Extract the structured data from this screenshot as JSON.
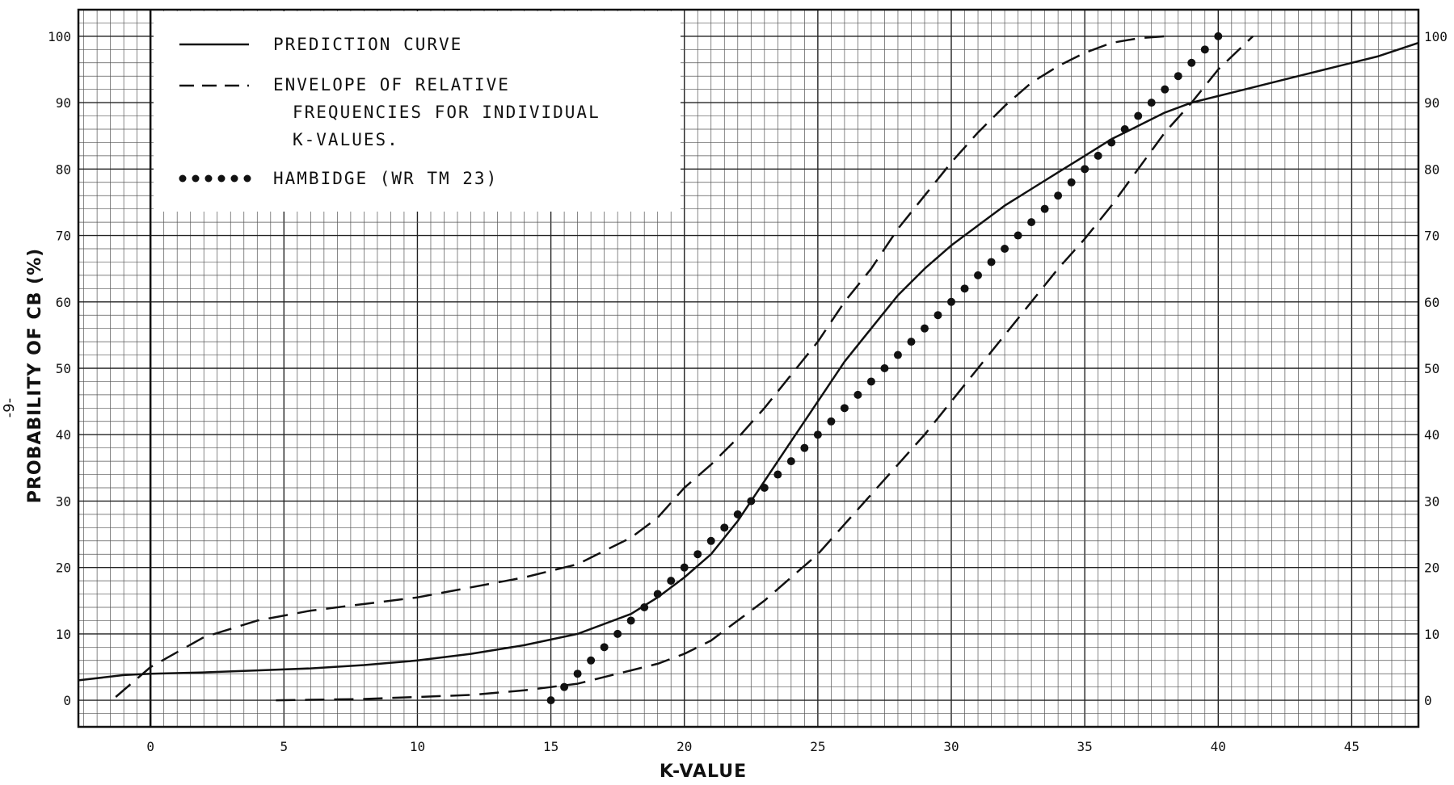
{
  "page_marker": "-9-",
  "chart_data": {
    "type": "line",
    "xlabel": "K-VALUE",
    "ylabel": "PROBABILITY OF CB (%)",
    "xlim": [
      -2.7,
      47.5
    ],
    "ylim": [
      -4,
      104
    ],
    "x_ticks": [
      0,
      5,
      10,
      15,
      20,
      25,
      30,
      35,
      40,
      45
    ],
    "x_tick_labels": [
      "0",
      "5",
      "10",
      "15",
      "20",
      "25",
      "30",
      "35",
      "40",
      "45"
    ],
    "y_ticks": [
      0,
      10,
      20,
      30,
      40,
      50,
      60,
      70,
      80,
      90,
      100
    ],
    "y_tick_labels": [
      "0",
      "10",
      "20",
      "30",
      "40",
      "50",
      "60",
      "70",
      "80",
      "90",
      "100"
    ],
    "right_y_tick_labels": [
      "0",
      "10",
      "20",
      "30",
      "40",
      "50",
      "60",
      "70",
      "80",
      "90",
      "100"
    ],
    "grid": true,
    "legend_position": "top-left",
    "legend": [
      {
        "style": "solid",
        "lines": [
          "PREDICTION CURVE"
        ]
      },
      {
        "style": "dashed",
        "lines": [
          "ENVELOPE OF RELATIVE",
          "FREQUENCIES FOR INDIVIDUAL",
          "K-VALUES."
        ]
      },
      {
        "style": "dotted",
        "lines": [
          "HAMBIDGE (WR TM 23)"
        ]
      }
    ],
    "series": [
      {
        "style": "solid",
        "x": [
          -2.7,
          -1,
          0,
          2,
          4,
          6,
          8,
          10,
          12,
          14,
          16,
          18,
          19,
          20,
          21,
          22,
          23,
          24,
          25,
          26,
          27,
          28,
          29,
          30,
          31,
          32,
          33,
          34,
          35,
          36,
          37,
          38,
          39,
          40,
          41,
          42,
          43,
          44,
          45,
          46,
          47.5
        ],
        "y": [
          3,
          3.8,
          4,
          4.2,
          4.5,
          4.8,
          5.3,
          6,
          7,
          8.3,
          10,
          13,
          15.5,
          18.5,
          22,
          27,
          33,
          39,
          45,
          51,
          56,
          61,
          65,
          68.5,
          71.5,
          74.5,
          77,
          79.5,
          82,
          84.5,
          86.5,
          88.5,
          90,
          91,
          92,
          93,
          94,
          95,
          96,
          97,
          99
        ]
      },
      {
        "style": "dashed",
        "x": [
          -1.3,
          0,
          2,
          4,
          6,
          8,
          10,
          12,
          14,
          16,
          18,
          19,
          20,
          21,
          22,
          23,
          24,
          25,
          26,
          27,
          28,
          29,
          30,
          31,
          32,
          33,
          34,
          35,
          36,
          37,
          38
        ],
        "y": [
          0.5,
          5,
          9.5,
          12,
          13.5,
          14.5,
          15.5,
          17,
          18.5,
          20.5,
          24.5,
          27.5,
          32,
          35.5,
          39.5,
          44,
          49,
          54,
          60,
          65,
          71,
          76,
          81,
          85.5,
          89.5,
          93,
          95.5,
          97.5,
          99,
          99.7,
          100
        ]
      },
      {
        "style": "dashed",
        "x": [
          4.7,
          8,
          12,
          14,
          16,
          17,
          18,
          19,
          20,
          21,
          22,
          23,
          24,
          25,
          26,
          27,
          28,
          29,
          30,
          31,
          32,
          33,
          34,
          35,
          36,
          37,
          38,
          39,
          40,
          41.3
        ],
        "y": [
          0,
          0.2,
          0.8,
          1.5,
          2.5,
          3.5,
          4.5,
          5.5,
          7,
          9,
          12,
          15,
          18.5,
          22,
          26.5,
          31,
          35.5,
          40,
          45,
          50,
          55,
          60,
          65,
          69.5,
          74.5,
          80,
          85.5,
          90,
          95,
          100
        ]
      },
      {
        "style": "dotted",
        "x": [
          15,
          15.5,
          16,
          16.5,
          17,
          17.5,
          18,
          18.5,
          19,
          19.5,
          20,
          20.5,
          21,
          21.5,
          22,
          22.5,
          23,
          23.5,
          24,
          24.5,
          25,
          25.5,
          26,
          26.5,
          27,
          27.5,
          28,
          28.5,
          29,
          29.5,
          30,
          30.5,
          31,
          31.5,
          32,
          32.5,
          33,
          33.5,
          34,
          34.5,
          35,
          35.5,
          36,
          36.5,
          37,
          37.5,
          38,
          38.5,
          39,
          39.5,
          40
        ],
        "y": [
          0,
          2,
          4,
          6,
          8,
          10,
          12,
          14,
          16,
          18,
          20,
          22,
          24,
          26,
          28,
          30,
          32,
          34,
          36,
          38,
          40,
          42,
          44,
          46,
          48,
          50,
          52,
          54,
          56,
          58,
          60,
          62,
          64,
          66,
          68,
          70,
          72,
          74,
          76,
          78,
          80,
          82,
          84,
          86,
          88,
          90,
          92,
          94,
          96,
          98,
          100
        ]
      }
    ]
  }
}
